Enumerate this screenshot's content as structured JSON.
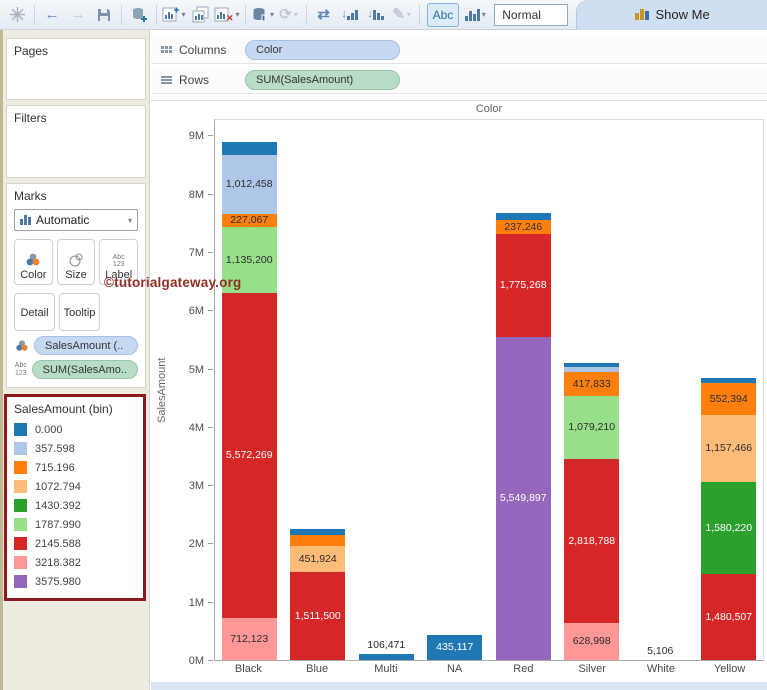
{
  "toolbar": {
    "normal": "Normal",
    "abc": "Abc",
    "show_me": "Show Me"
  },
  "shelves": {
    "columns_label": "Columns",
    "rows_label": "Rows",
    "columns_pill": "Color",
    "rows_pill": "SUM(SalesAmount)"
  },
  "sidebar": {
    "pages_label": "Pages",
    "filters_label": "Filters",
    "marks": {
      "label": "Marks",
      "mark_type": "Automatic",
      "color_btn": "Color",
      "size_btn": "Size",
      "label_btn": "Label",
      "detail_btn": "Detail",
      "tooltip_btn": "Tooltip",
      "abc_icon_line1": "Abc",
      "abc_icon_line2": "123"
    },
    "fields": [
      {
        "label": "SalesAmount (..",
        "pill": "dimension"
      },
      {
        "label": "SUM(SalesAmo..",
        "pill": "measure"
      }
    ],
    "legend": {
      "title": "SalesAmount (bin)",
      "items": [
        {
          "label": "0.000",
          "color": "#1F77B4"
        },
        {
          "label": "357.598",
          "color": "#AEC7E8"
        },
        {
          "label": "715.196",
          "color": "#FF7F0E"
        },
        {
          "label": "1072.794",
          "color": "#FFBB78"
        },
        {
          "label": "1430.392",
          "color": "#2CA02C"
        },
        {
          "label": "1787.990",
          "color": "#98DF8A"
        },
        {
          "label": "2145.588",
          "color": "#D62728"
        },
        {
          "label": "3218.382",
          "color": "#FF9896"
        },
        {
          "label": "3575.980",
          "color": "#9467BD"
        }
      ]
    }
  },
  "watermark": "©tutorialgateway.org",
  "chart_data": {
    "type": "bar",
    "subtype": "stacked",
    "title": "Color",
    "ylabel": "SalesAmount",
    "ylim": [
      0,
      9300000
    ],
    "yticks": [
      "0M",
      "1M",
      "2M",
      "3M",
      "4M",
      "5M",
      "6M",
      "7M",
      "8M",
      "9M"
    ],
    "legend_position": "left-panel",
    "grid": false,
    "categories": [
      "Black",
      "Blue",
      "Multi",
      "NA",
      "Red",
      "Silver",
      "White",
      "Yellow"
    ],
    "bins": [
      {
        "label": "0.000",
        "color": "#1F77B4",
        "label_color": "#FFFFFF"
      },
      {
        "label": "357.598",
        "color": "#AEC7E8",
        "label_color": "#2B2B2B"
      },
      {
        "label": "715.196",
        "color": "#FF7F0E",
        "label_color": "#2B2B2B"
      },
      {
        "label": "1072.794",
        "color": "#FFBB78",
        "label_color": "#2B2B2B"
      },
      {
        "label": "1430.392",
        "color": "#2CA02C",
        "label_color": "#FFFFFF"
      },
      {
        "label": "1787.990",
        "color": "#98DF8A",
        "label_color": "#2B2B2B"
      },
      {
        "label": "2145.588",
        "color": "#D62728",
        "label_color": "#FFFFFF"
      },
      {
        "label": "3218.382",
        "color": "#FF9896",
        "label_color": "#2B2B2B"
      },
      {
        "label": "3575.980",
        "color": "#9467BD",
        "label_color": "#FFFFFF"
      }
    ],
    "bars": [
      {
        "category": "Black",
        "segments": [
          {
            "bin": "3218.382",
            "value": 712123,
            "label": "712,123"
          },
          {
            "bin": "2145.588",
            "value": 5572269,
            "label": "5,572,269"
          },
          {
            "bin": "1787.990",
            "value": 1135200,
            "label": "1,135,200"
          },
          {
            "bin": "715.196",
            "value": 227067,
            "label": "227,067"
          },
          {
            "bin": "357.598",
            "value": 1012458,
            "label": "1,012,458"
          },
          {
            "bin": "0.000",
            "value": 220000,
            "label": "",
            "estimated": true
          }
        ]
      },
      {
        "category": "Blue",
        "segments": [
          {
            "bin": "2145.588",
            "value": 1511500,
            "label": "1,511,500"
          },
          {
            "bin": "1072.794",
            "value": 451924,
            "label": "451,924"
          },
          {
            "bin": "715.196",
            "value": 185000,
            "label": "",
            "estimated": true
          },
          {
            "bin": "0.000",
            "value": 100000,
            "label": "",
            "estimated": true
          }
        ]
      },
      {
        "category": "Multi",
        "segments": [
          {
            "bin": "0.000",
            "value": 106471,
            "label": "106,471"
          }
        ]
      },
      {
        "category": "NA",
        "segments": [
          {
            "bin": "0.000",
            "value": 435117,
            "label": "435,117"
          }
        ]
      },
      {
        "category": "Red",
        "segments": [
          {
            "bin": "3575.980",
            "value": 5549897,
            "label": "5,549,897"
          },
          {
            "bin": "2145.588",
            "value": 1775268,
            "label": "1,775,268"
          },
          {
            "bin": "715.196",
            "value": 237246,
            "label": "237,246"
          },
          {
            "bin": "0.000",
            "value": 120000,
            "label": "",
            "estimated": true
          }
        ]
      },
      {
        "category": "Silver",
        "segments": [
          {
            "bin": "3218.382",
            "value": 628998,
            "label": "628,998"
          },
          {
            "bin": "2145.588",
            "value": 2818788,
            "label": "2,818,788"
          },
          {
            "bin": "1787.990",
            "value": 1079210,
            "label": "1,079,210"
          },
          {
            "bin": "715.196",
            "value": 417833,
            "label": "417,833"
          },
          {
            "bin": "357.598",
            "value": 85000,
            "label": "",
            "estimated": true
          },
          {
            "bin": "0.000",
            "value": 70000,
            "label": "",
            "estimated": true
          }
        ]
      },
      {
        "category": "White",
        "segments": [
          {
            "bin": "0.000",
            "value": 5106,
            "label": "5,106"
          }
        ]
      },
      {
        "category": "Yellow",
        "segments": [
          {
            "bin": "2145.588",
            "value": 1480507,
            "label": "1,480,507"
          },
          {
            "bin": "1430.392",
            "value": 1580220,
            "label": "1,580,220"
          },
          {
            "bin": "1072.794",
            "value": 1157466,
            "label": "1,157,466"
          },
          {
            "bin": "715.196",
            "value": 552394,
            "label": "552,394"
          },
          {
            "bin": "0.000",
            "value": 90000,
            "label": "",
            "estimated": true
          }
        ]
      }
    ]
  }
}
